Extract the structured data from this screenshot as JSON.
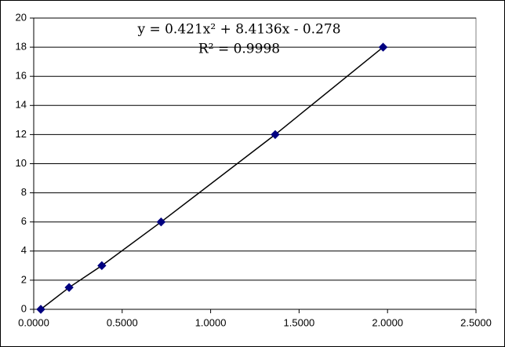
{
  "chart_data": {
    "type": "scatter",
    "annotations": [
      "y = 0.421x² + 8.4136x - 0.278",
      "R² = 0.9998"
    ],
    "series": [
      {
        "color": "#000080",
        "x": [
          0.04,
          0.2,
          0.385,
          0.72,
          1.365,
          1.975
        ],
        "values": [
          0,
          1.5,
          3,
          6,
          12,
          18
        ]
      }
    ],
    "trendline": true,
    "xlim": [
      0,
      2.5
    ],
    "xticks": [
      {
        "value": 0,
        "label": "0.0000"
      },
      {
        "value": 0.5,
        "label": "0.5000"
      },
      {
        "value": 1,
        "label": "1.0000"
      },
      {
        "value": 1.5,
        "label": "1.5000"
      },
      {
        "value": 2,
        "label": "2.0000"
      },
      {
        "value": 2.5,
        "label": "2.5000"
      }
    ],
    "ylim": [
      0,
      20
    ],
    "yticks": [
      0,
      2,
      4,
      6,
      8,
      10,
      12,
      14,
      16,
      18,
      20
    ],
    "grid": true
  }
}
